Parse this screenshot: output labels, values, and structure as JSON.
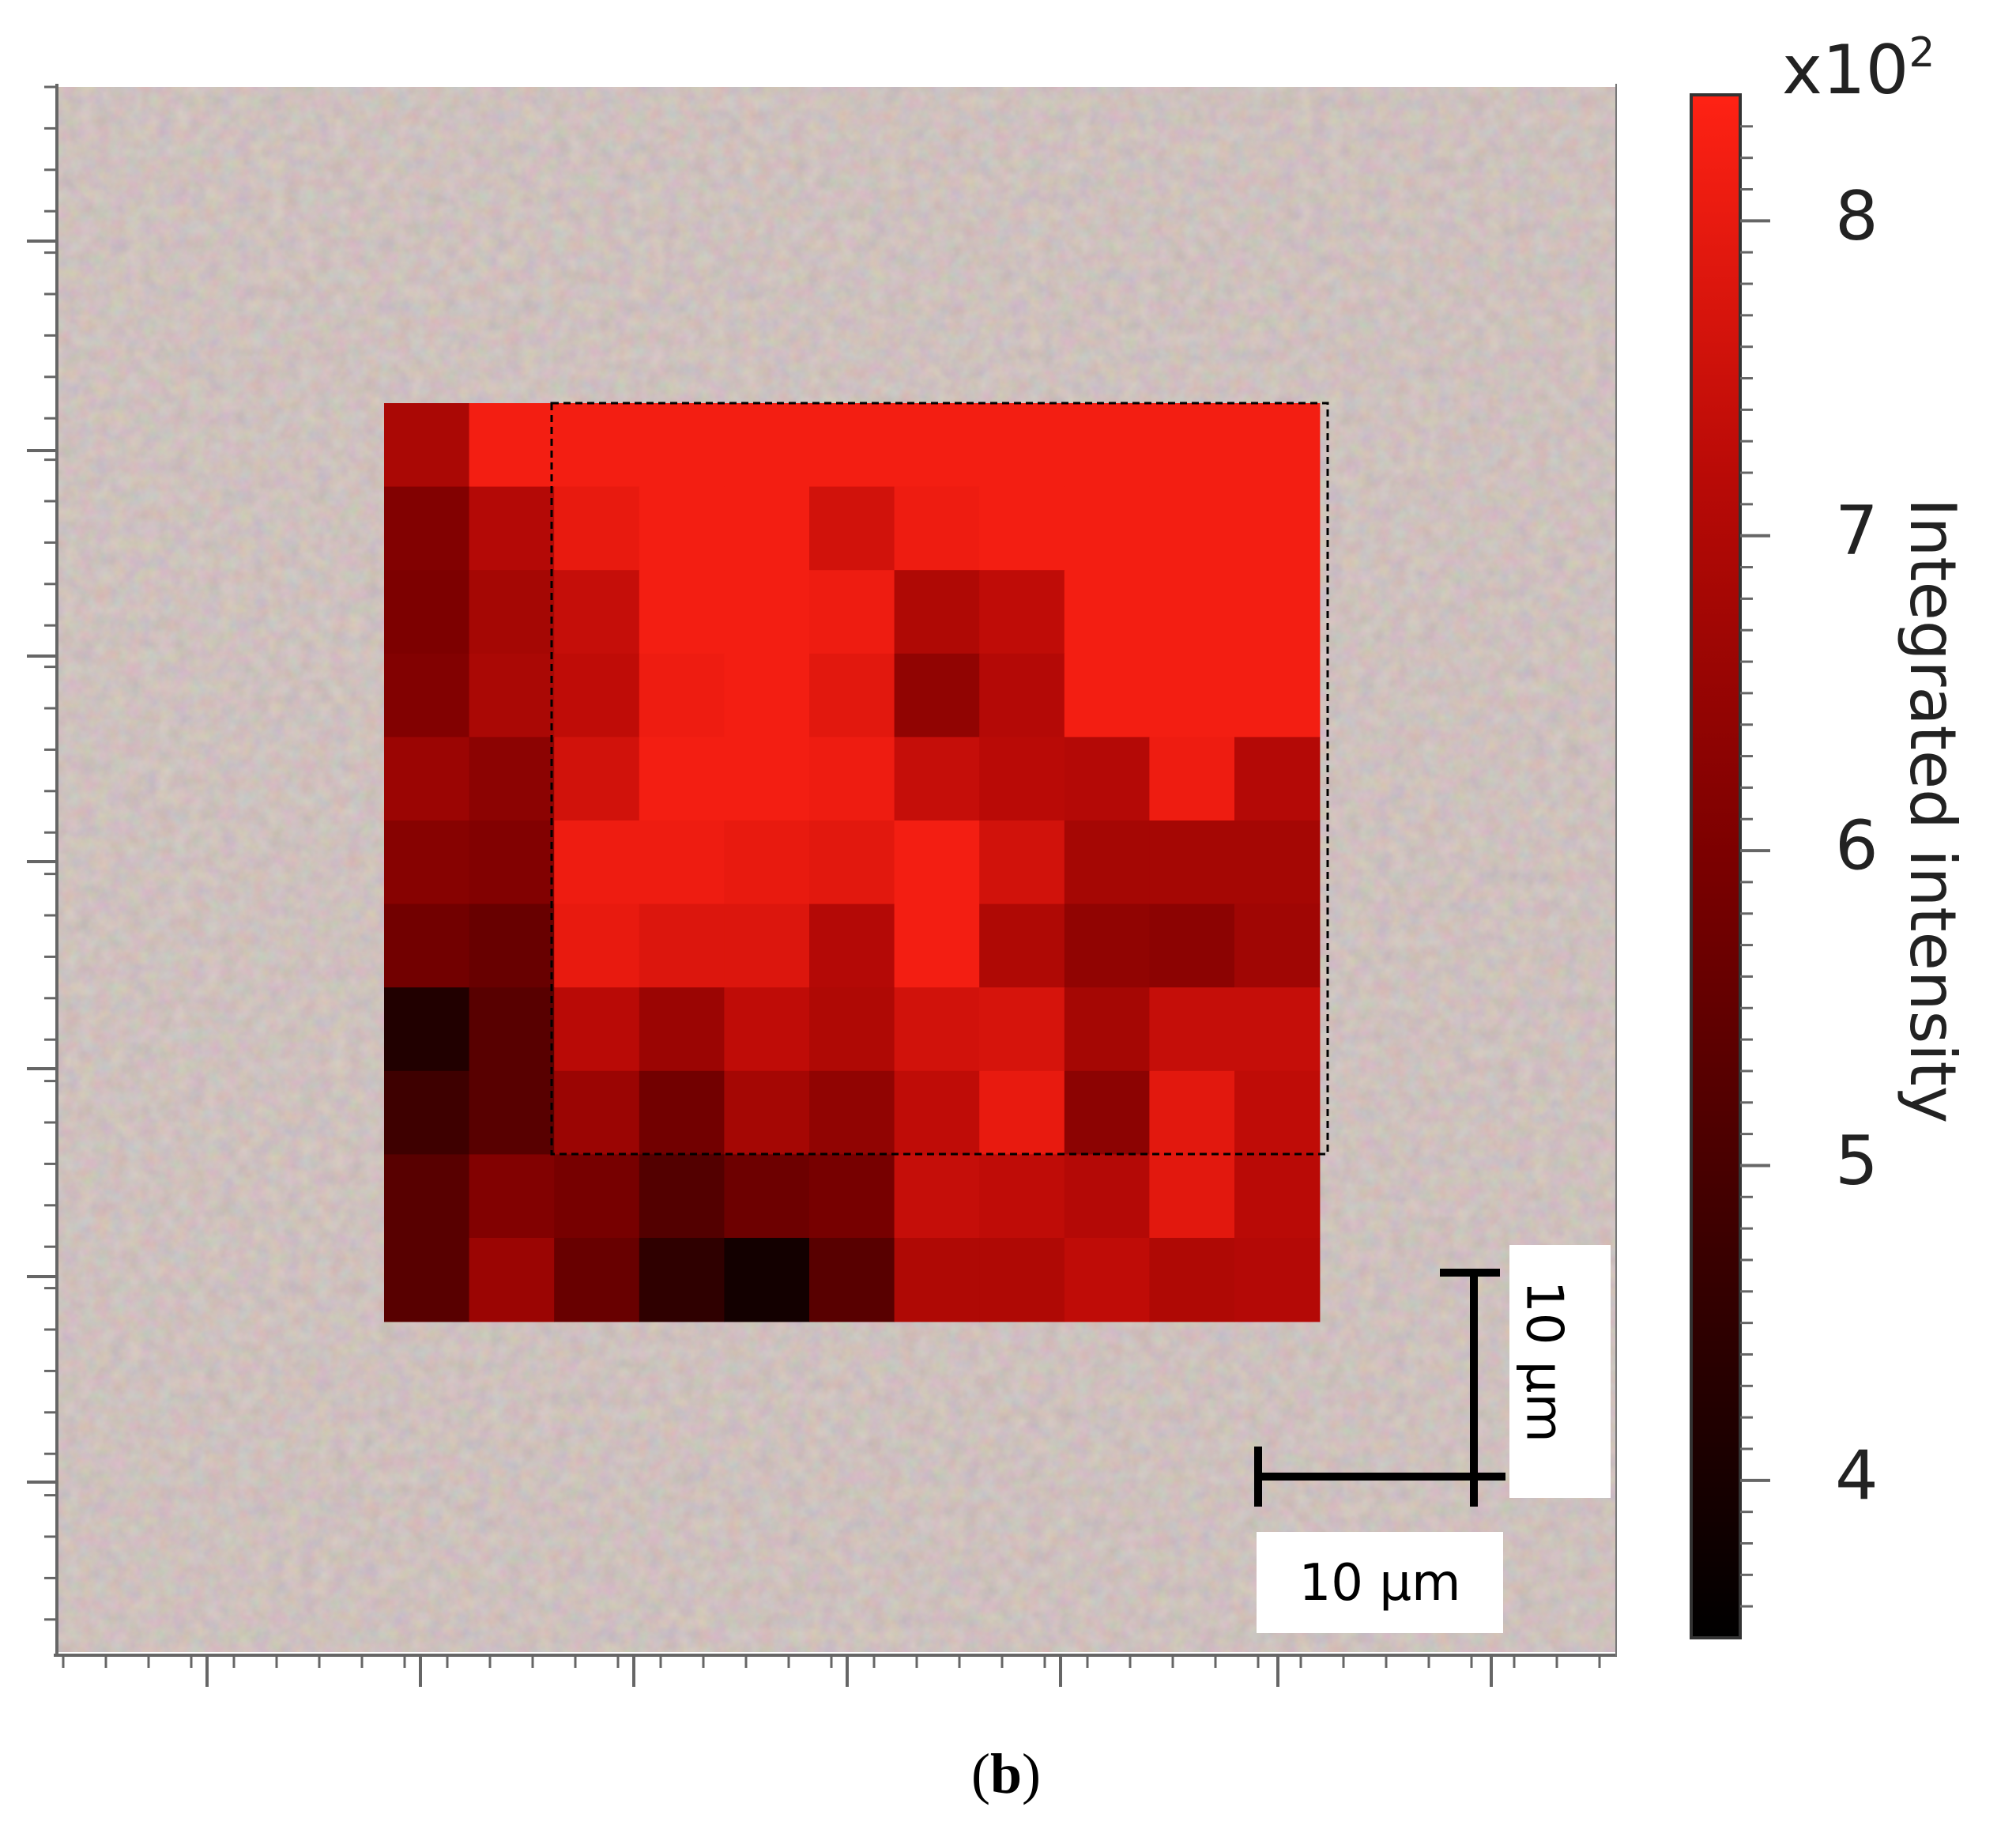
{
  "chart_data": {
    "type": "heatmap",
    "description_free": true,
    "rows": 11,
    "cols": 11,
    "values": [
      [
        6.9,
        8.2,
        8.2,
        8.2,
        8.2,
        8.2,
        8.2,
        8.2,
        8.2,
        8.2,
        8.2
      ],
      [
        6.1,
        7.1,
        8.0,
        8.2,
        8.2,
        7.6,
        8.1,
        8.2,
        8.2,
        8.2,
        8.2
      ],
      [
        6.0,
        6.8,
        7.4,
        8.2,
        8.2,
        8.1,
        7.0,
        7.3,
        8.2,
        8.2,
        8.2
      ],
      [
        6.1,
        6.9,
        7.3,
        8.1,
        8.2,
        7.9,
        6.4,
        7.1,
        8.2,
        8.2,
        8.2
      ],
      [
        6.6,
        6.3,
        7.6,
        8.2,
        8.2,
        8.1,
        7.4,
        7.2,
        7.1,
        8.1,
        7.1
      ],
      [
        6.2,
        6.1,
        8.1,
        8.1,
        8.0,
        7.9,
        8.2,
        7.6,
        6.8,
        6.8,
        6.8
      ],
      [
        5.8,
        5.6,
        8.0,
        7.8,
        7.8,
        7.1,
        8.2,
        7.0,
        6.4,
        6.3,
        6.7
      ],
      [
        4.2,
        5.3,
        7.2,
        6.6,
        7.3,
        7.0,
        7.6,
        7.7,
        6.8,
        7.4,
        7.4
      ],
      [
        4.8,
        5.3,
        6.6,
        5.8,
        6.8,
        6.4,
        7.3,
        8.0,
        6.3,
        7.9,
        7.3
      ],
      [
        5.3,
        6.1,
        5.9,
        5.2,
        5.7,
        5.9,
        7.4,
        7.3,
        7.1,
        7.9,
        7.2
      ],
      [
        5.3,
        6.6,
        5.6,
        4.5,
        3.9,
        5.3,
        7.0,
        7.0,
        7.3,
        7.0,
        7.1
      ]
    ],
    "colorbar": {
      "title": "Integrated intensity",
      "multiplier_base": "x10",
      "multiplier_exp": "2",
      "min": 3.5,
      "max": 8.4,
      "ticks": [
        "4",
        "5",
        "6",
        "7",
        "8"
      ],
      "colors": [
        "#000000",
        "#3a0000",
        "#7a0000",
        "#b80a06",
        "#ff2214"
      ]
    }
  },
  "scale_bars": {
    "vertical_label": "10 μm",
    "horizontal_label": "10 μm"
  },
  "caption": {
    "open": "(",
    "letter": "b",
    "close": ")"
  }
}
